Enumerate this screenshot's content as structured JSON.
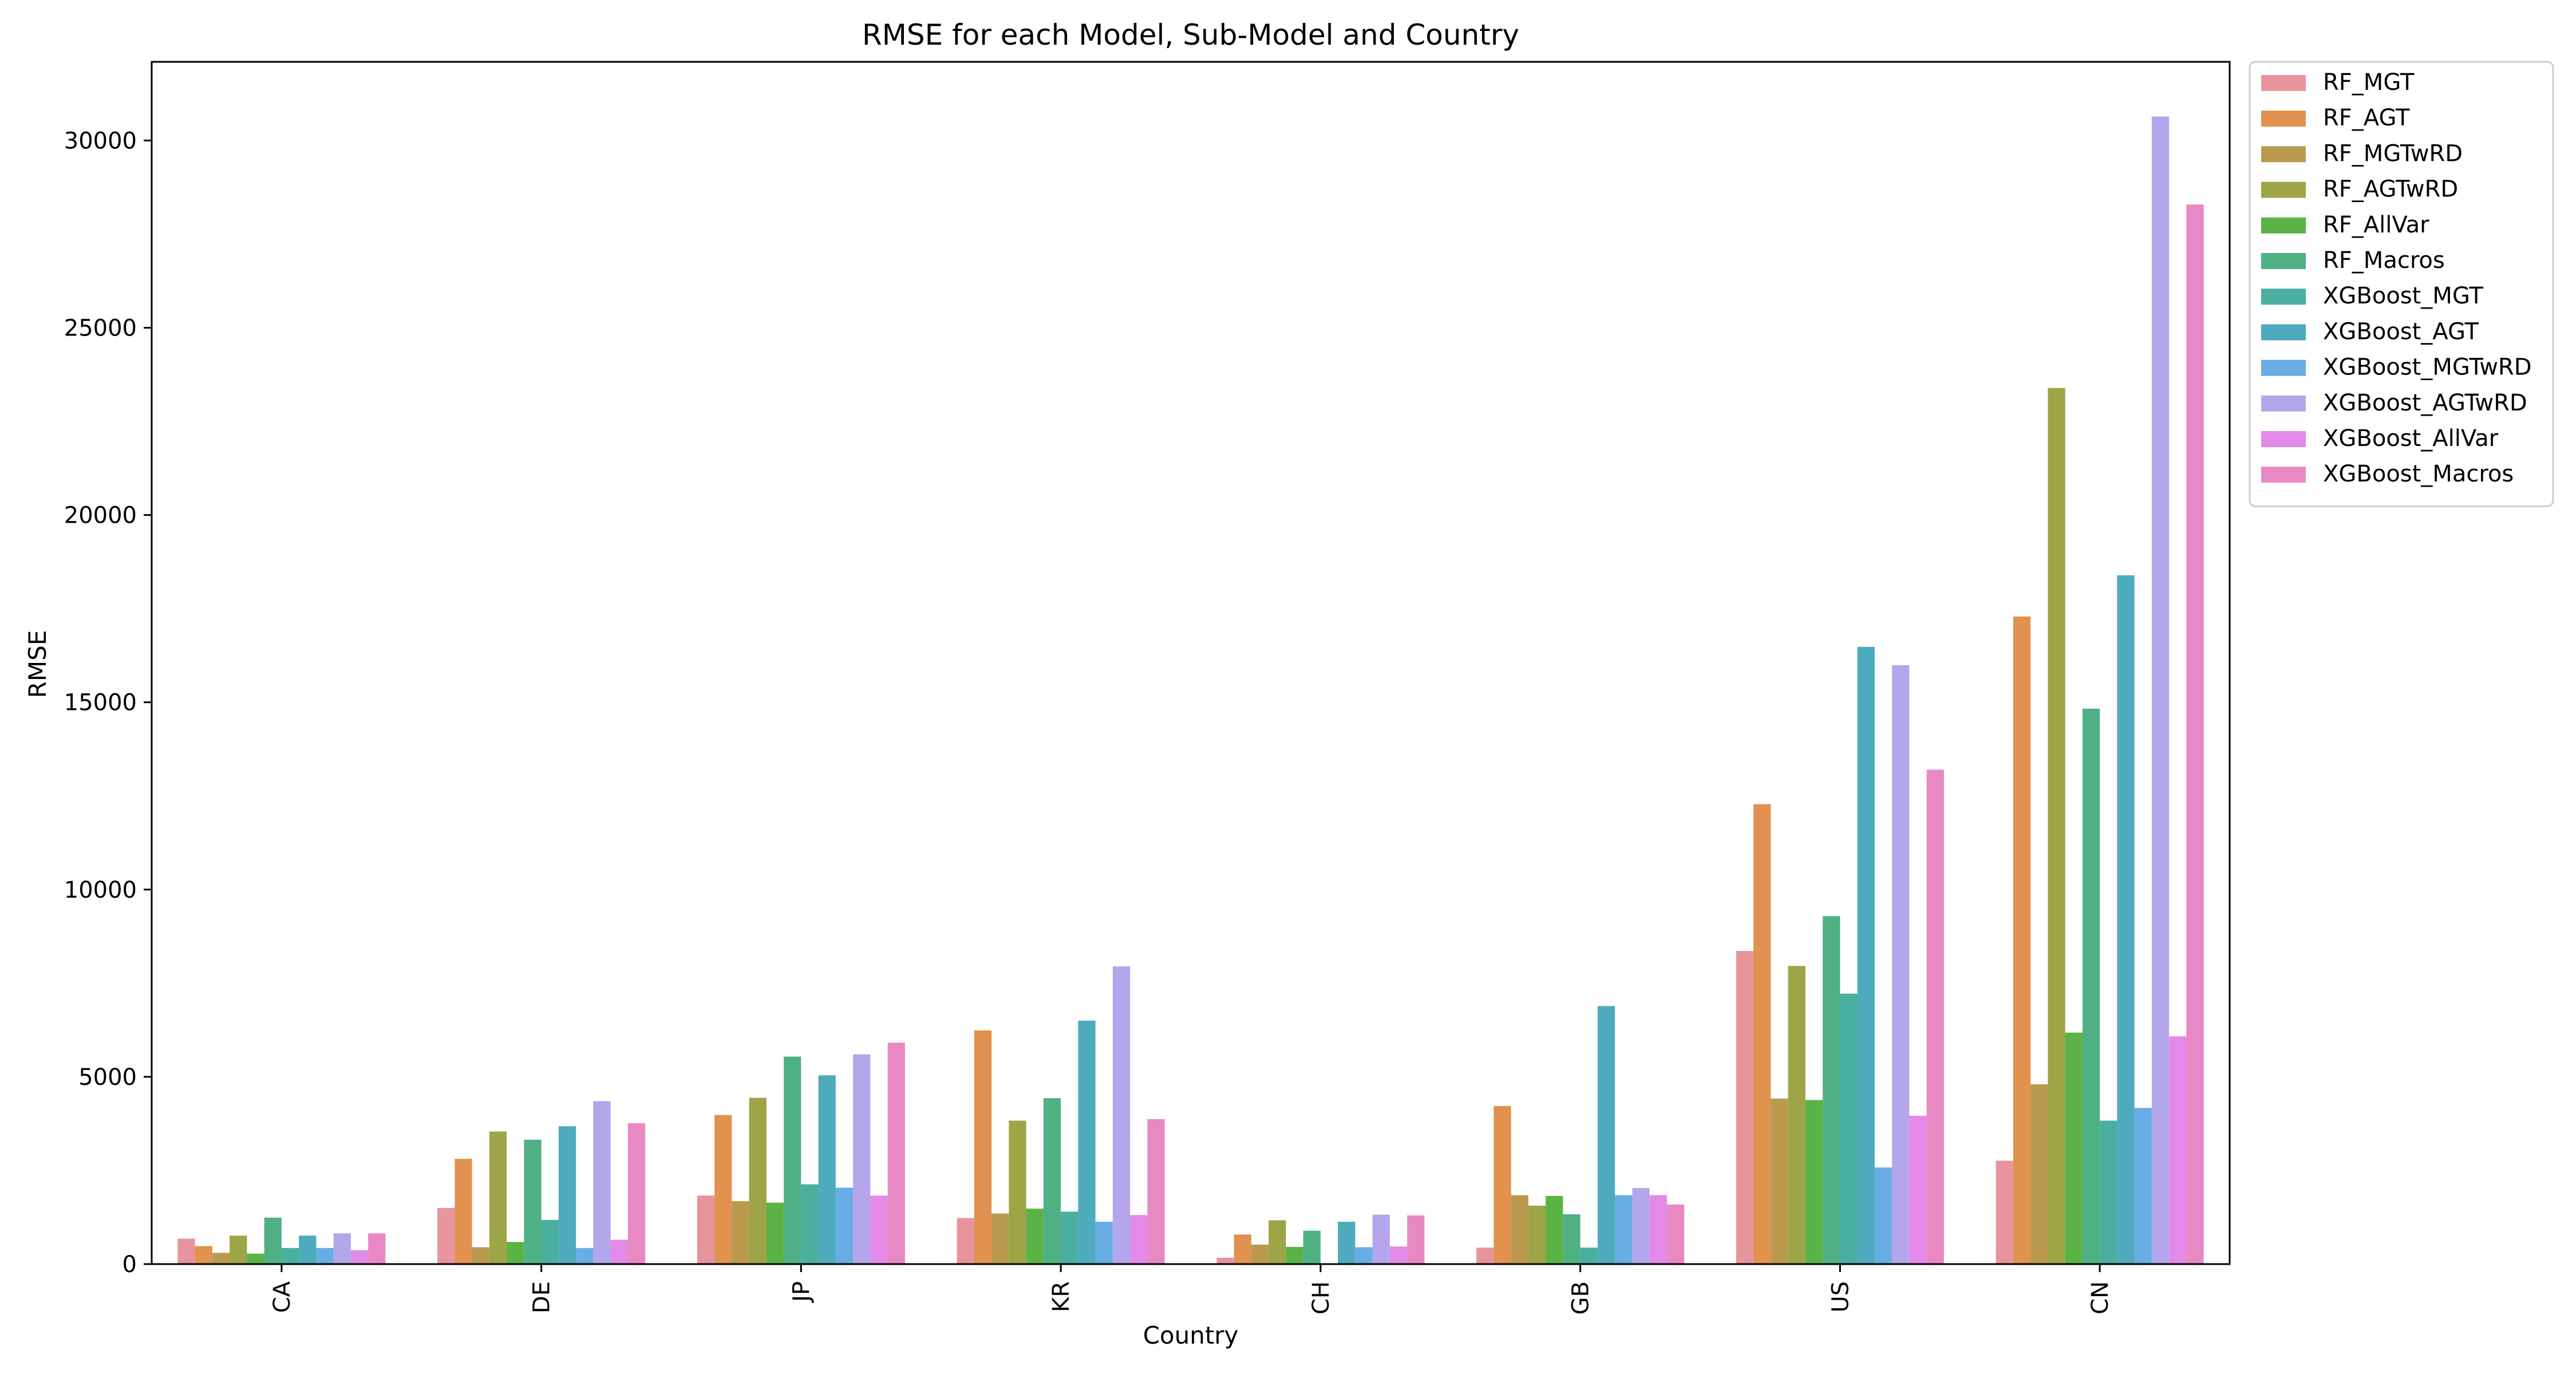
{
  "chart_data": {
    "type": "bar",
    "title": "RMSE for each Model, Sub-Model and Country",
    "xlabel": "Country",
    "ylabel": "RMSE",
    "ylim": [
      0,
      32100
    ],
    "yticks": [
      0,
      5000,
      10000,
      15000,
      20000,
      25000,
      30000
    ],
    "grid": false,
    "legend_position": "outside-right-top",
    "categories": [
      "CA",
      "DE",
      "JP",
      "KR",
      "CH",
      "GB",
      "US",
      "CN"
    ],
    "series": [
      {
        "name": "RF_MGT",
        "color": "#e8949c",
        "values": [
          680,
          1500,
          1830,
          1230,
          170,
          440,
          8360,
          2760
        ]
      },
      {
        "name": "RF_AGT",
        "color": "#e0924e",
        "values": [
          480,
          2810,
          3980,
          6240,
          790,
          4220,
          12280,
          17290
        ]
      },
      {
        "name": "RF_MGTwRD",
        "color": "#b99a4f",
        "values": [
          300,
          450,
          1680,
          1350,
          520,
          1840,
          4420,
          4800
        ]
      },
      {
        "name": "RF_AGTwRD",
        "color": "#9da546",
        "values": [
          760,
          3540,
          4440,
          3830,
          1170,
          1560,
          7960,
          23390
        ]
      },
      {
        "name": "RF_AllVar",
        "color": "#5bb346",
        "values": [
          280,
          590,
          1640,
          1480,
          460,
          1820,
          4380,
          6180
        ]
      },
      {
        "name": "RF_Macros",
        "color": "#4fb084",
        "values": [
          1240,
          3320,
          5540,
          4430,
          890,
          1330,
          9290,
          14830
        ]
      },
      {
        "name": "XGBoost_MGT",
        "color": "#4aaea0",
        "values": [
          430,
          1180,
          2130,
          1400,
          0,
          440,
          7220,
          3830
        ]
      },
      {
        "name": "XGBoost_AGT",
        "color": "#4dabbd",
        "values": [
          760,
          3680,
          5040,
          6500,
          1130,
          6890,
          16480,
          18390
        ]
      },
      {
        "name": "XGBoost_MGTwRD",
        "color": "#68aee4",
        "values": [
          430,
          430,
          2040,
          1130,
          450,
          1840,
          2580,
          4170
        ]
      },
      {
        "name": "XGBoost_AGTwRD",
        "color": "#b4a6ea",
        "values": [
          820,
          4350,
          5600,
          7950,
          1320,
          2030,
          15990,
          30640
        ]
      },
      {
        "name": "XGBoost_AllVar",
        "color": "#e38ae8",
        "values": [
          370,
          650,
          1830,
          1310,
          470,
          1840,
          3960,
          6080
        ]
      },
      {
        "name": "XGBoost_Macros",
        "color": "#e889c4",
        "values": [
          820,
          3760,
          5910,
          3870,
          1300,
          1590,
          13200,
          28290
        ]
      }
    ]
  }
}
